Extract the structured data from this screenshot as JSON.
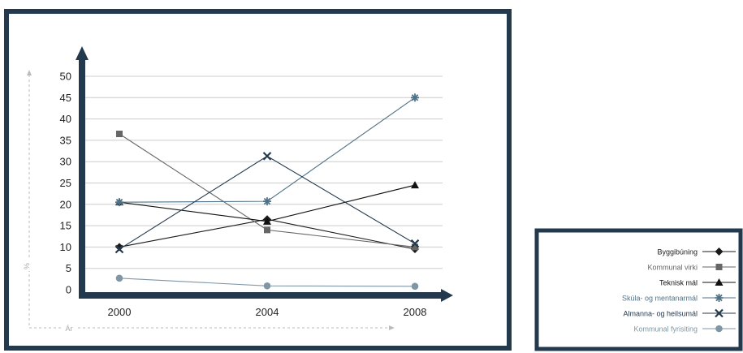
{
  "chart_data": {
    "type": "line",
    "title": "",
    "xlabel": "Ár",
    "ylabel": "%",
    "x": [
      "2000",
      "2004",
      "2008"
    ],
    "yticks": [
      "0",
      "5",
      "10",
      "15",
      "20",
      "25",
      "30",
      "35",
      "40",
      "45",
      "50"
    ],
    "ylim": [
      0,
      50
    ],
    "grid": true,
    "legend_position": "bottom-right",
    "series": [
      {
        "name": "Byggibúning",
        "values": [
          10,
          16.5,
          9.5
        ],
        "color": "#1a1a1a",
        "marker": "diamond"
      },
      {
        "name": "Kommunal virki",
        "values": [
          36.5,
          14,
          10
        ],
        "color": "#666666",
        "marker": "square"
      },
      {
        "name": "Teknisk mál",
        "values": [
          20.5,
          16,
          24.5
        ],
        "color": "#111111",
        "marker": "triangle"
      },
      {
        "name": "Skúla- og mentanarmál",
        "values": [
          20.5,
          20.7,
          45
        ],
        "color": "#4f7287",
        "marker": "asterisk"
      },
      {
        "name": "Almanna- og heilsumál",
        "values": [
          9.5,
          31.3,
          10.8
        ],
        "color": "#23394e",
        "marker": "x"
      },
      {
        "name": "Kommunal fyrisiting",
        "values": [
          2.7,
          0.9,
          0.8
        ],
        "color": "#7f96a5",
        "marker": "circle"
      }
    ]
  },
  "colors": {
    "frame": "#23394e",
    "grid": "#cccccc",
    "dashed_axis": "#bbbbbb",
    "tick_text": "#222222"
  }
}
